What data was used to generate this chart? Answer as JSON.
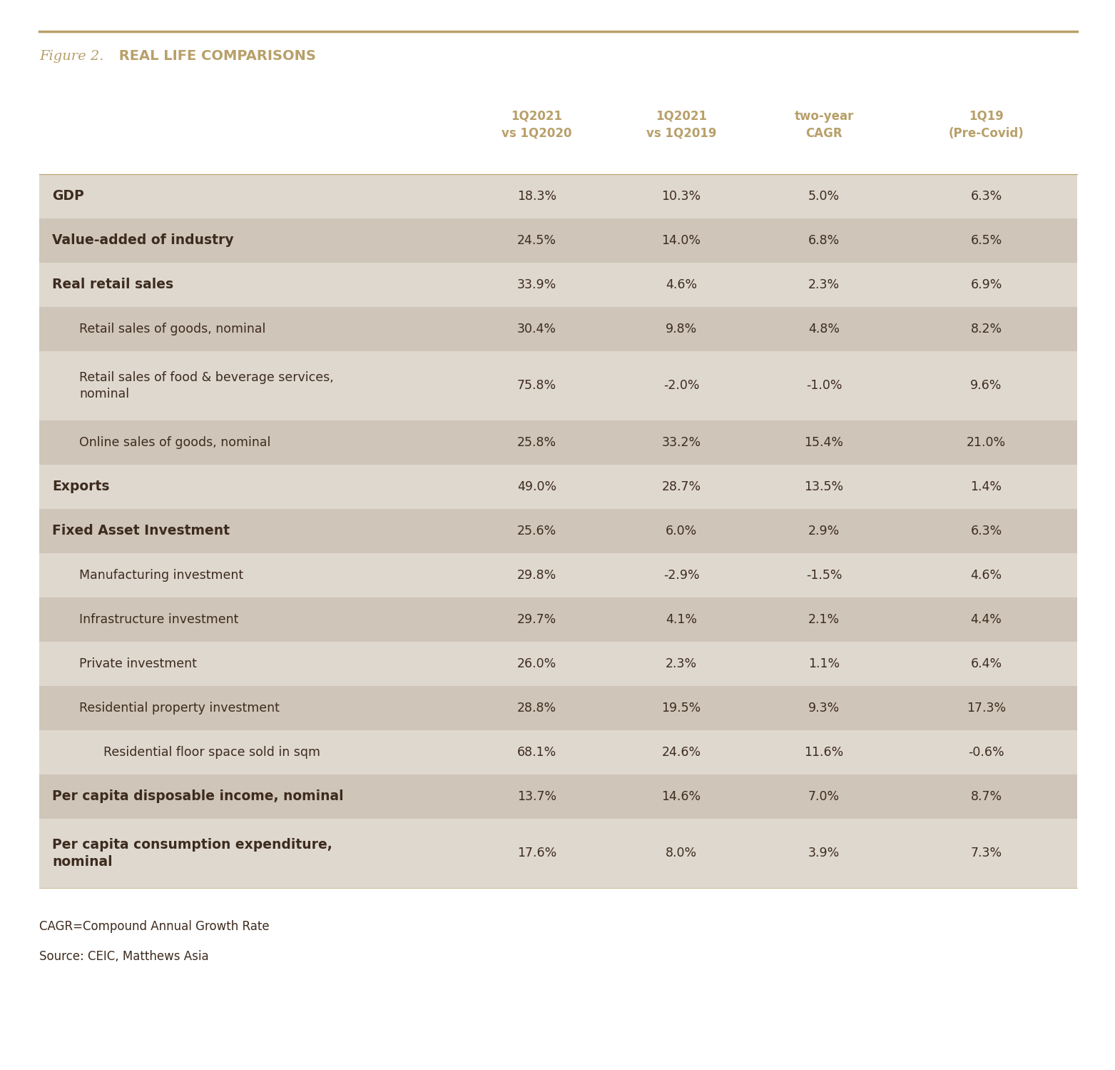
{
  "figure_label_italic": "Figure 2.",
  "figure_label_bold": " REAL LIFE COMPARISONS",
  "top_line_color": "#b8a06a",
  "background_color": "#ffffff",
  "col_headers": [
    "1Q2021\nvs 1Q2020",
    "1Q2021\nvs 1Q2019",
    "two-year\nCAGR",
    "1Q19\n(Pre-Covid)"
  ],
  "row_bg_dark": "#cfc5b8",
  "row_bg_light": "#dfd8ce",
  "rows": [
    {
      "label": "GDP",
      "bold": true,
      "indent": 0,
      "values": [
        "18.3%",
        "10.3%",
        "5.0%",
        "6.3%"
      ],
      "bg": "light"
    },
    {
      "label": "Value-added of industry",
      "bold": true,
      "indent": 0,
      "values": [
        "24.5%",
        "14.0%",
        "6.8%",
        "6.5%"
      ],
      "bg": "dark"
    },
    {
      "label": "Real retail sales",
      "bold": true,
      "indent": 0,
      "values": [
        "33.9%",
        "4.6%",
        "2.3%",
        "6.9%"
      ],
      "bg": "light"
    },
    {
      "label": "Retail sales of goods, nominal",
      "bold": false,
      "indent": 1,
      "values": [
        "30.4%",
        "9.8%",
        "4.8%",
        "8.2%"
      ],
      "bg": "dark"
    },
    {
      "label": "Retail sales of food & beverage services,\nnominal",
      "bold": false,
      "indent": 1,
      "values": [
        "75.8%",
        "-2.0%",
        "-1.0%",
        "9.6%"
      ],
      "bg": "light"
    },
    {
      "label": "Online sales of goods, nominal",
      "bold": false,
      "indent": 1,
      "values": [
        "25.8%",
        "33.2%",
        "15.4%",
        "21.0%"
      ],
      "bg": "dark"
    },
    {
      "label": "Exports",
      "bold": true,
      "indent": 0,
      "values": [
        "49.0%",
        "28.7%",
        "13.5%",
        "1.4%"
      ],
      "bg": "light"
    },
    {
      "label": "Fixed Asset Investment",
      "bold": true,
      "indent": 0,
      "values": [
        "25.6%",
        "6.0%",
        "2.9%",
        "6.3%"
      ],
      "bg": "dark"
    },
    {
      "label": "Manufacturing investment",
      "bold": false,
      "indent": 1,
      "values": [
        "29.8%",
        "-2.9%",
        "-1.5%",
        "4.6%"
      ],
      "bg": "light"
    },
    {
      "label": "Infrastructure investment",
      "bold": false,
      "indent": 1,
      "values": [
        "29.7%",
        "4.1%",
        "2.1%",
        "4.4%"
      ],
      "bg": "dark"
    },
    {
      "label": "Private investment",
      "bold": false,
      "indent": 1,
      "values": [
        "26.0%",
        "2.3%",
        "1.1%",
        "6.4%"
      ],
      "bg": "light"
    },
    {
      "label": "Residential property investment",
      "bold": false,
      "indent": 1,
      "values": [
        "28.8%",
        "19.5%",
        "9.3%",
        "17.3%"
      ],
      "bg": "dark"
    },
    {
      "label": "Residential floor space sold in sqm",
      "bold": false,
      "indent": 2,
      "values": [
        "68.1%",
        "24.6%",
        "11.6%",
        "-0.6%"
      ],
      "bg": "light"
    },
    {
      "label": "Per capita disposable income, nominal",
      "bold": true,
      "indent": 0,
      "values": [
        "13.7%",
        "14.6%",
        "7.0%",
        "8.7%"
      ],
      "bg": "dark"
    },
    {
      "label": "Per capita consumption expenditure,\nnominal",
      "bold": true,
      "indent": 0,
      "values": [
        "17.6%",
        "8.0%",
        "3.9%",
        "7.3%"
      ],
      "bg": "light"
    }
  ],
  "footnote1": "CAGR=Compound Annual Growth Rate",
  "footnote2": "Source: CEIC, Matthews Asia",
  "text_color": "#3d2b1f",
  "header_text_color": "#b8a06a"
}
